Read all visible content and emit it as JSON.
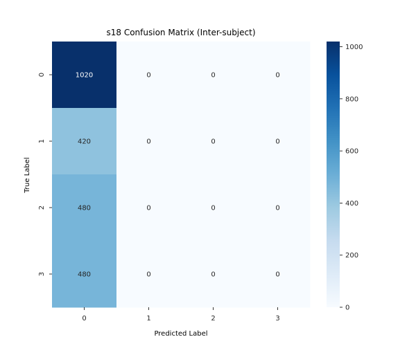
{
  "chart_data": {
    "type": "heatmap",
    "title": "s18 Confusion Matrix (Inter-subject)",
    "xlabel": "Predicted Label",
    "ylabel": "True Label",
    "x_categories": [
      "0",
      "1",
      "2",
      "3"
    ],
    "y_categories": [
      "0",
      "1",
      "2",
      "3"
    ],
    "matrix": [
      [
        1020,
        0,
        0,
        0
      ],
      [
        420,
        0,
        0,
        0
      ],
      [
        480,
        0,
        0,
        0
      ],
      [
        480,
        0,
        0,
        0
      ]
    ],
    "colormap": "Blues",
    "colorbar": {
      "range": [
        0,
        1020
      ],
      "ticks": [
        0,
        200,
        400,
        600,
        800,
        1000
      ]
    },
    "grid": false
  }
}
